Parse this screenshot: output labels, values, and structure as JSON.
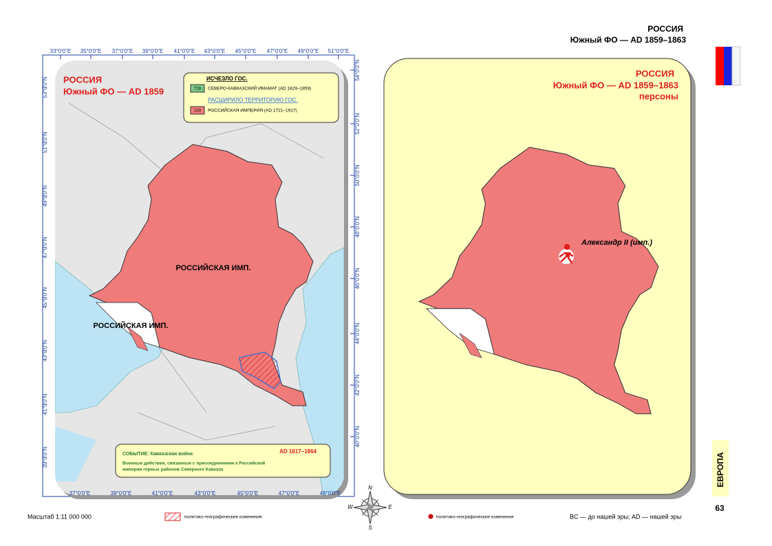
{
  "header": {
    "title": "РОССИЯ",
    "subtitle": "Южный ФО — AD 1859–1863"
  },
  "left_map": {
    "title": "РОССИЯ",
    "subtitle": "Южный ФО — AD 1859",
    "legend": {
      "disappeared_heading": "ИСЧЕЗЛО ГОС.",
      "disappeared_code": "719",
      "disappeared_label": "СЕВЕРО-КАВКАЗСКИЙ ИМАМАТ (AD 1829–1859)",
      "expanded_heading": "РАСШИРИЛО ТЕРРИТОРИЮ ГОС.",
      "expanded_code": "103",
      "expanded_label": "РОССИЙСКАЯ ИМПЕРИЯ (AD 1721–1917)"
    },
    "labels": [
      "РОССИЙСКАЯ ИМП.",
      "РОССИЙСКАЯ ИМП."
    ],
    "top_lon": [
      "33°0'0\"E",
      "35°0'0\"E",
      "37°0'0\"E",
      "39°0'0\"E",
      "41°0'0\"E",
      "43°0'0\"E",
      "45°0'0\"E",
      "47°0'0\"E",
      "49°0'0\"E",
      "51°0'0\"E"
    ],
    "bottom_lon": [
      "37°0'0\"E",
      "39°0'0\"E",
      "41°0'0\"E",
      "43°0'0\"E",
      "45°0'0\"E",
      "47°0'0\"E",
      "49°0'0\"E"
    ],
    "left_lat": [
      "53°0'0\"N",
      "51°0'0\"N",
      "49°0'0\"N",
      "47°0'0\"N",
      "45°0'0\"N",
      "43°0'0\"N",
      "41°0'0\"N",
      "39°0'0\"N"
    ],
    "right_lat": [
      "54°0'0\"N",
      "52°0'0\"N",
      "50°0'0\"N",
      "48°0'0\"N",
      "46°0'0\"N",
      "44°0'0\"N",
      "42°0'0\"N",
      "40°0'0\"N"
    ],
    "event": {
      "heading": "СОБЫТИЕ: Кавказская война",
      "date": "AD 1817–1864",
      "text_1": "Военные действия, связанные с присоединением к Российской",
      "text_2": "империи горных районов Северного Кавказа"
    }
  },
  "right_map": {
    "title": "РОССИЯ",
    "subtitle": "Южный ФО — AD 1859–1863",
    "caption": "персоны",
    "person": "Александр II (имп.)"
  },
  "compass": {
    "n": "N",
    "e": "E",
    "s": "S",
    "w": "W"
  },
  "side": {
    "region": "ЕВРОПА",
    "page": "63"
  },
  "footer": {
    "scale": "Масштаб 1:11 000 000",
    "hatch_legend": "политико-географические изменения",
    "dot_legend": "политико-географические изменения",
    "era_note": "BC — до нашей эры; AD — нашей эры"
  }
}
